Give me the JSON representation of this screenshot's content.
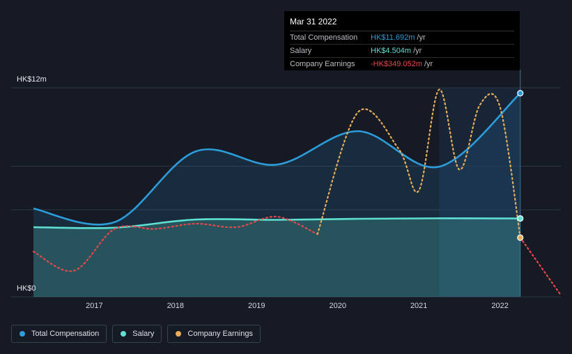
{
  "chart_data": {
    "type": "line",
    "ylim": [
      0,
      12
    ],
    "y_tick_labels": [
      {
        "value": 12,
        "label": "HK$12m"
      },
      {
        "value": 0,
        "label": "HK$0"
      }
    ],
    "x_tick_labels": [
      {
        "value": 2017.0,
        "label": "2017"
      },
      {
        "value": 2018.0,
        "label": "2018"
      },
      {
        "value": 2019.0,
        "label": "2019"
      },
      {
        "value": 2020.0,
        "label": "2020"
      },
      {
        "value": 2021.0,
        "label": "2021"
      },
      {
        "value": 2022.0,
        "label": "2022"
      }
    ],
    "xlim": [
      2016.25,
      2022.75
    ],
    "grid": true,
    "legend_position": "bottom-left",
    "highlight_start": 2021.25,
    "cursor_x": 2022.25,
    "series": [
      {
        "name": "Total Compensation",
        "color": "#2d9cdb",
        "style": "solid",
        "area": true,
        "points": [
          [
            2016.25,
            5.07
          ],
          [
            2017.25,
            4.29
          ],
          [
            2018.25,
            8.35
          ],
          [
            2019.25,
            7.59
          ],
          [
            2020.25,
            9.51
          ],
          [
            2021.25,
            7.47
          ],
          [
            2022.25,
            11.69
          ]
        ]
      },
      {
        "name": "Salary",
        "color": "#5fe0d2",
        "style": "solid",
        "area": true,
        "points": [
          [
            2016.25,
            4.0
          ],
          [
            2017.25,
            3.97
          ],
          [
            2018.25,
            4.44
          ],
          [
            2019.25,
            4.42
          ],
          [
            2020.25,
            4.48
          ],
          [
            2021.25,
            4.51
          ],
          [
            2022.25,
            4.5
          ]
        ]
      },
      {
        "name": "Company Earnings",
        "color": "#e8ad5a",
        "negative_color": "#e8474b",
        "style": "dotted",
        "area": false,
        "points": [
          [
            2016.25,
            2.6
          ],
          [
            2016.75,
            1.5
          ],
          [
            2017.25,
            3.9
          ],
          [
            2017.75,
            3.9
          ],
          [
            2018.25,
            4.2
          ],
          [
            2018.75,
            4.0
          ],
          [
            2019.25,
            4.6
          ],
          [
            2019.75,
            3.6
          ],
          [
            2020.25,
            10.6
          ],
          [
            2020.75,
            8.5
          ],
          [
            2021.0,
            6.1
          ],
          [
            2021.25,
            11.9
          ],
          [
            2021.5,
            7.3
          ],
          [
            2021.75,
            11.0
          ],
          [
            2022.0,
            10.9
          ],
          [
            2022.25,
            3.4
          ],
          [
            2022.75,
            0.1
          ]
        ]
      }
    ]
  },
  "tooltip": {
    "date": "Mar 31 2022",
    "rows": [
      {
        "label": "Total Compensation",
        "value": "HK$11.692m",
        "unit": "/yr",
        "color": "#2d9cdb"
      },
      {
        "label": "Salary",
        "value": "HK$4.504m",
        "unit": "/yr",
        "color": "#5fe0d2"
      },
      {
        "label": "Company Earnings",
        "value": "-HK$349.052m",
        "unit": "/yr",
        "color": "#e8474b"
      }
    ]
  },
  "legend": [
    {
      "label": "Total Compensation",
      "color": "#2d9cdb"
    },
    {
      "label": "Salary",
      "color": "#5fe0d2"
    },
    {
      "label": "Company Earnings",
      "color": "#e8ad5a"
    }
  ]
}
